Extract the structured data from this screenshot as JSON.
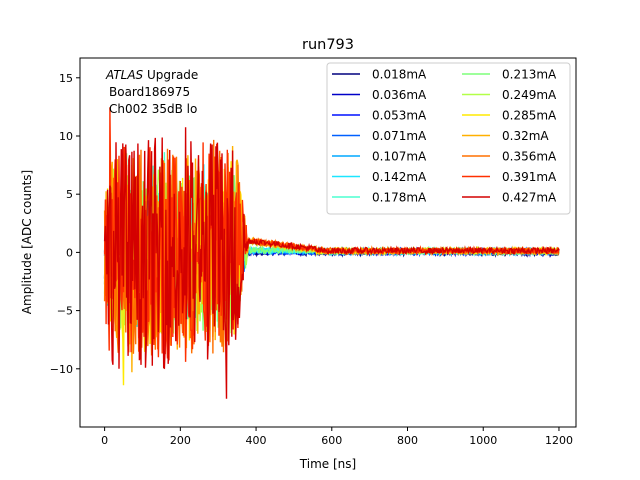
{
  "chart_data": {
    "type": "line",
    "title": "run793",
    "xlabel": "Time [ns]",
    "ylabel": "Amplitude [ADC counts]",
    "xlim": [
      -65,
      1245
    ],
    "ylim": [
      -15.0,
      16.7
    ],
    "xticks": [
      0,
      200,
      400,
      600,
      800,
      1000,
      1200
    ],
    "yticks": [
      -10,
      -5,
      0,
      5,
      10,
      15
    ],
    "grid": false,
    "legend_placement": "upper right",
    "legend_columns": 2,
    "annotations": {
      "atlas": "ATLAS",
      "upgrade": " Upgrade",
      "board": "Board186975",
      "channel": "Ch002 35dB lo"
    },
    "series": [
      {
        "name": "0.018mA",
        "color": "#00007f",
        "baseline_after_400ns": 0.0
      },
      {
        "name": "0.036mA",
        "color": "#0000c8",
        "baseline_after_400ns": 0.05
      },
      {
        "name": "0.053mA",
        "color": "#0010ff",
        "baseline_after_400ns": 0.1
      },
      {
        "name": "0.071mA",
        "color": "#0060ff",
        "baseline_after_400ns": 0.1
      },
      {
        "name": "0.107mA",
        "color": "#00a8ff",
        "baseline_after_400ns": 0.15
      },
      {
        "name": "0.142mA",
        "color": "#1ce6ff",
        "baseline_after_400ns": 0.15
      },
      {
        "name": "0.178mA",
        "color": "#4dffd0",
        "baseline_after_400ns": 0.2
      },
      {
        "name": "0.213mA",
        "color": "#7dff7a",
        "baseline_after_400ns": 0.2
      },
      {
        "name": "0.249mA",
        "color": "#b3ff48",
        "baseline_after_400ns": 0.2
      },
      {
        "name": "0.285mA",
        "color": "#ffea00",
        "baseline_after_400ns": 0.25
      },
      {
        "name": "0.32mA",
        "color": "#ffb000",
        "baseline_after_400ns": 0.25
      },
      {
        "name": "0.356mA",
        "color": "#ff7000",
        "baseline_after_400ns": 0.3
      },
      {
        "name": "0.391mA",
        "color": "#ff3000",
        "baseline_after_400ns": 0.3
      },
      {
        "name": "0.427mA",
        "color": "#d40000",
        "baseline_after_400ns": 0.3
      }
    ],
    "notes_visible": {
      "burst_region_ns": [
        0,
        350
      ],
      "burst_amplitude_range": [
        -13.5,
        12
      ]
    }
  }
}
